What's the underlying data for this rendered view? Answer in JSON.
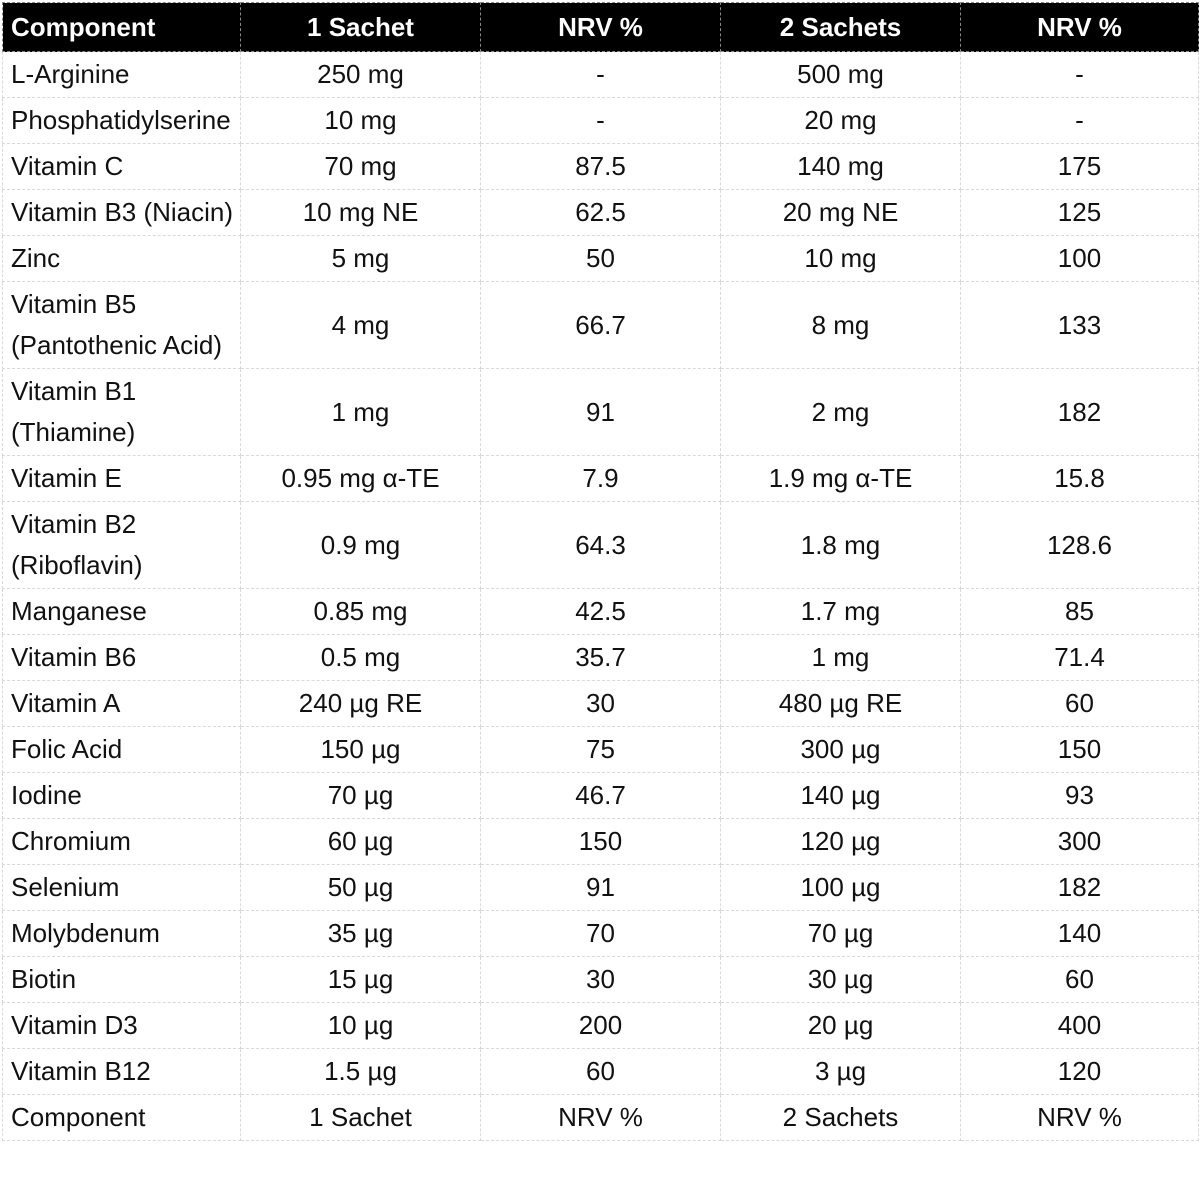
{
  "chart_data": {
    "type": "table",
    "columns": [
      "Component",
      "1 Sachet",
      "NRV %",
      "2 Sachets",
      "NRV %"
    ],
    "rows": [
      [
        "L-Arginine",
        "250 mg",
        "-",
        "500 mg",
        "-"
      ],
      [
        "Phosphatidylserine",
        "10 mg",
        "-",
        "20 mg",
        "-"
      ],
      [
        "Vitamin C",
        "70 mg",
        "87.5",
        "140 mg",
        "175"
      ],
      [
        "Vitamin B3 (Niacin)",
        "10 mg NE",
        "62.5",
        "20 mg NE",
        "125"
      ],
      [
        "Zinc",
        "5 mg",
        "50",
        "10 mg",
        "100"
      ],
      [
        "Vitamin B5 (Pantothenic Acid)",
        "4 mg",
        "66.7",
        "8 mg",
        "133"
      ],
      [
        "Vitamin B1 (Thiamine)",
        "1 mg",
        "91",
        "2 mg",
        "182"
      ],
      [
        "Vitamin E",
        "0.95 mg α-TE",
        "7.9",
        "1.9 mg α-TE",
        "15.8"
      ],
      [
        "Vitamin B2 (Riboflavin)",
        "0.9 mg",
        "64.3",
        "1.8 mg",
        "128.6"
      ],
      [
        "Manganese",
        "0.85 mg",
        "42.5",
        "1.7 mg",
        "85"
      ],
      [
        "Vitamin B6",
        "0.5 mg",
        "35.7",
        "1 mg",
        "71.4"
      ],
      [
        "Vitamin A",
        "240 µg RE",
        "30",
        "480 µg RE",
        "60"
      ],
      [
        "Folic Acid",
        "150 µg",
        "75",
        "300 µg",
        "150"
      ],
      [
        "Iodine",
        "70 µg",
        "46.7",
        "140 µg",
        "93"
      ],
      [
        "Chromium",
        "60 µg",
        "150",
        "120 µg",
        "300"
      ],
      [
        "Selenium",
        "50 µg",
        "91",
        "100 µg",
        "182"
      ],
      [
        "Molybdenum",
        "35 µg",
        "70",
        "70 µg",
        "140"
      ],
      [
        "Biotin",
        "15 µg",
        "30",
        "30 µg",
        "60"
      ],
      [
        "Vitamin D3",
        "10 µg",
        "200",
        "20 µg",
        "400"
      ],
      [
        "Vitamin B12",
        "1.5 µg",
        "60",
        "3 µg",
        "120"
      ]
    ],
    "footer_labels": [
      "Component",
      "1 Sachet",
      "NRV %",
      "2 Sachets",
      "NRV %"
    ],
    "layout": {
      "grid": "dashed",
      "first_column_align": "left",
      "value_columns_align": "center"
    },
    "colors": {
      "header_bg": "#000000",
      "header_text": "#ffffff",
      "body_text": "#111111",
      "grid_line": "#d9d9d9",
      "header_grid_line": "#8a8a8a",
      "body_bg": "#ffffff"
    }
  }
}
